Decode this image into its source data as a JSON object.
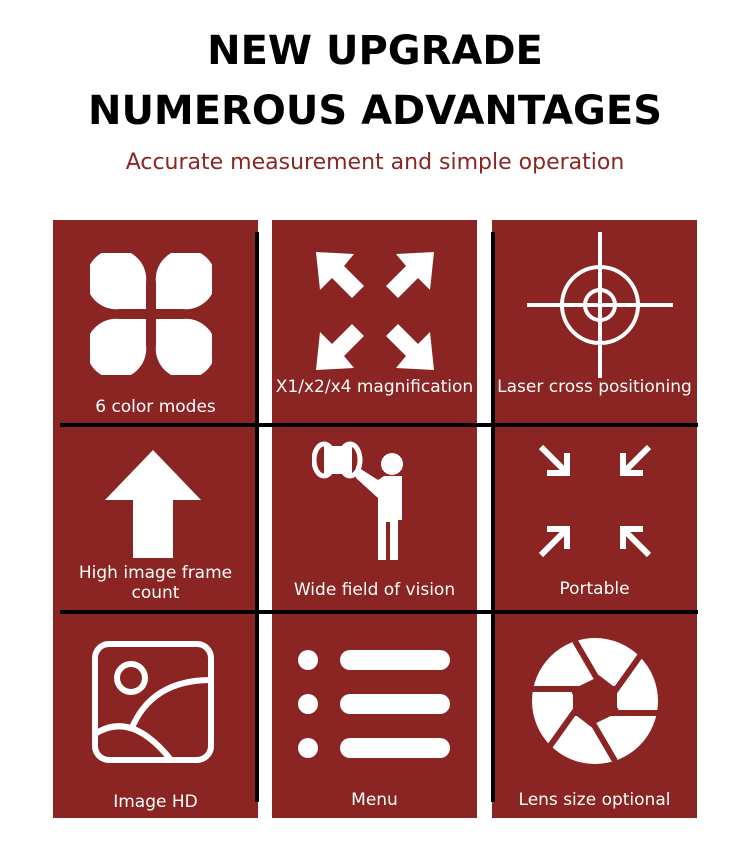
{
  "header": {
    "line1": "NEW UPGRADE",
    "line2": "NUMEROUS ADVANTAGES",
    "subtitle": "Accurate measurement and simple operation"
  },
  "brand_color": "#8b2523",
  "features": [
    {
      "label": "6 color modes",
      "icon": "clover-icon"
    },
    {
      "label": "X1/x2/x4 magnification",
      "icon": "expand-arrows-icon"
    },
    {
      "label": "Laser cross positioning",
      "icon": "crosshair-icon"
    },
    {
      "label": "High image frame count",
      "icon": "arrow-up-icon"
    },
    {
      "label": "Wide field of vision",
      "icon": "binoculars-person-icon"
    },
    {
      "label": "Portable",
      "icon": "compress-arrows-icon"
    },
    {
      "label": "Image HD",
      "icon": "image-icon"
    },
    {
      "label": "Menu",
      "icon": "menu-list-icon"
    },
    {
      "label": "Lens size optional",
      "icon": "aperture-icon"
    }
  ]
}
